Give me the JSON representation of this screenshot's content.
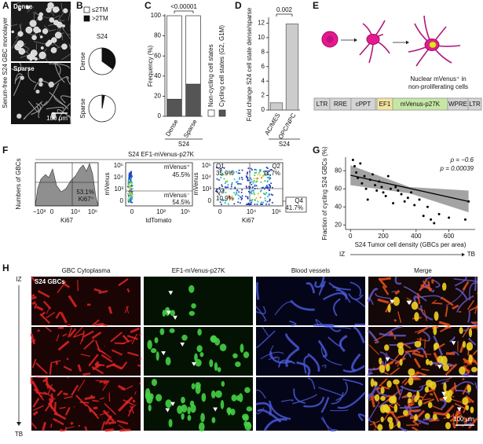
{
  "figure": {
    "panel_labels": [
      "A",
      "B",
      "C",
      "D",
      "E",
      "F",
      "G",
      "H"
    ],
    "A": {
      "side_label": "Serum-free S24 GBC monolayer",
      "dense": "Dense",
      "sparse": "Sparse",
      "scale_bar": "100 μm"
    },
    "E": {
      "caption": [
        "Nuclear mVenus⁺ in",
        "non-proliferating cells"
      ],
      "construct": [
        "LTR",
        "RRE",
        "cPPT",
        "EF1",
        "mVenus-p27K",
        "WPRE",
        "LTR"
      ]
    },
    "F": {
      "title": "S24 EF1-mVenus-p27K",
      "histogram": {
        "ylabel": "Numbers of GBCs",
        "xlabel": "Ki67",
        "xticks": [
          "−10³",
          "0",
          "10⁴",
          "10⁶"
        ],
        "gate_percent": "53.1%",
        "gate_label": "Ki67⁺"
      },
      "mvenus": {
        "ylabel": "mVenus",
        "xlabel": "tdTomato",
        "yticks": [
          "10⁵",
          "10⁴",
          "10³",
          "0"
        ],
        "xticks": [
          "0",
          "10³",
          "10⁵"
        ],
        "pos_label": "mVenus⁺",
        "pos_percent": "45.5%",
        "neg_label": "mVenus⁻",
        "neg_percent": "54.5%"
      },
      "quadrant": {
        "ylabel": "mVenus",
        "xlabel": "Ki67",
        "yticks": [
          "10⁵",
          "10⁴",
          "10³",
          "0"
        ],
        "xticks": [
          "0",
          "10⁴",
          "10⁶"
        ],
        "quadrants": [
          {
            "name": "Q1",
            "percent": "35.9%"
          },
          {
            "name": "Q2",
            "percent": "11.7%"
          },
          {
            "name": "Q3",
            "percent": "10.9%"
          },
          {
            "name": "Q4",
            "percent": "41.7%"
          }
        ]
      }
    },
    "H": {
      "columns": [
        "GBC Cytoplasma",
        "EF1-mVenus-p27K",
        "Blood vessels",
        "Merge"
      ],
      "inset_label": "S24 GBCs",
      "axis_top": "IZ",
      "axis_bottom": "TB",
      "scale_bar": "100 μm"
    }
  },
  "chart_data": [
    {
      "type": "pie",
      "categories": [
        "≤2TM",
        ">2TM"
      ],
      "colors": [
        "#ffffff",
        "#111111"
      ],
      "group_label": "S24",
      "series": [
        {
          "name": "Dense",
          "values": [
            65,
            35
          ]
        },
        {
          "name": "Sparse",
          "values": [
            97,
            3
          ]
        }
      ]
    },
    {
      "type": "bar",
      "stacked": true,
      "annotation": "<0.00001",
      "ylabel": "Frequency (%)",
      "group_label": "S24",
      "categories": [
        "Dense",
        "Sparse"
      ],
      "series": [
        {
          "name": "Cycling cell states (G2, G1M)",
          "color": "#555555",
          "values": [
            17,
            32
          ]
        },
        {
          "name": "Non-cycling cell states",
          "color": "#ffffff",
          "values": [
            83,
            68
          ]
        }
      ],
      "ylim": [
        0,
        100
      ],
      "yticks": [
        0,
        20,
        40,
        60,
        80,
        100
      ]
    },
    {
      "type": "bar",
      "annotation": "0.002",
      "ylabel": "Fold change S24 cell state dense/sparse",
      "group_label": "S24",
      "categories": [
        "AC/MES",
        "OPC/NPC"
      ],
      "values": [
        1,
        11.9
      ],
      "color": "#cccccc",
      "ylim": [
        0,
        12.6
      ],
      "yticks": [
        0,
        2,
        4,
        6,
        8,
        10,
        12
      ]
    },
    {
      "type": "scatter",
      "ylabel": "Fraction of cycling S24 GBCs (%)",
      "xlabel": "S24 Tumor cell density (GBCs per area)",
      "annotations": [
        "ρ = −0.6",
        "p = 0.00039"
      ],
      "gradient_start": "IZ",
      "gradient_end": "TB",
      "color": "#000000",
      "x": [
        15,
        25,
        35,
        45,
        60,
        70,
        85,
        95,
        105,
        120,
        135,
        150,
        160,
        175,
        190,
        200,
        215,
        230,
        245,
        260,
        275,
        290,
        310,
        330,
        350,
        370,
        390,
        420,
        445,
        470,
        490,
        510,
        540,
        600,
        700,
        720
      ],
      "y": [
        92,
        85,
        78,
        72,
        88,
        66,
        74,
        60,
        48,
        70,
        76,
        64,
        58,
        68,
        62,
        56,
        52,
        74,
        60,
        44,
        62,
        58,
        54,
        46,
        50,
        56,
        42,
        48,
        30,
        40,
        26,
        22,
        32,
        28,
        26,
        46
      ],
      "fit": {
        "x": [
          0,
          720
        ],
        "y": [
          75,
          46
        ]
      },
      "band": {
        "x": [
          0,
          360,
          720
        ],
        "upper": [
          86,
          62,
          58
        ],
        "lower": [
          64,
          55,
          34
        ]
      },
      "xlim": [
        -30,
        760
      ],
      "ylim": [
        15,
        95
      ],
      "xticks": [
        0,
        200,
        400,
        600
      ],
      "yticks": [
        20,
        40,
        60,
        80
      ]
    }
  ]
}
